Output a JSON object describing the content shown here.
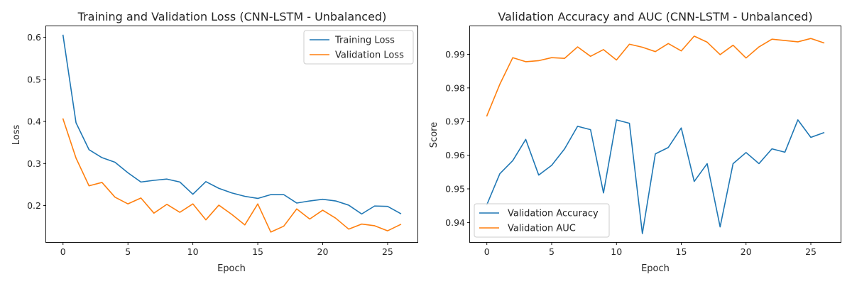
{
  "chart_data": [
    {
      "type": "line",
      "title": "Training and Validation Loss (CNN-LSTM - Unbalanced)",
      "xlabel": "Epoch",
      "ylabel": "Loss",
      "x": [
        0,
        1,
        2,
        3,
        4,
        5,
        6,
        7,
        8,
        9,
        10,
        11,
        12,
        13,
        14,
        15,
        16,
        17,
        18,
        19,
        20,
        21,
        22,
        23,
        24,
        25,
        26
      ],
      "xlim": [
        -1.3,
        27.3
      ],
      "ylim": [
        0.1131,
        0.6264
      ],
      "xticks": [
        0,
        5,
        10,
        15,
        20,
        25
      ],
      "yticks": [
        0.2,
        0.3,
        0.4,
        0.5,
        0.6
      ],
      "ytick_labels": [
        "0.2",
        "0.3",
        "0.4",
        "0.5",
        "0.6"
      ],
      "grid": false,
      "legend_position": "top-right",
      "series": [
        {
          "name": "Training Loss",
          "color": "#1f77b4",
          "values": [
            0.605,
            0.397,
            0.333,
            0.314,
            0.303,
            0.278,
            0.256,
            0.26,
            0.263,
            0.256,
            0.227,
            0.257,
            0.241,
            0.23,
            0.222,
            0.217,
            0.226,
            0.226,
            0.206,
            0.211,
            0.215,
            0.211,
            0.201,
            0.18,
            0.199,
            0.198,
            0.181
          ]
        },
        {
          "name": "Validation Loss",
          "color": "#ff7f0e",
          "values": [
            0.406,
            0.313,
            0.247,
            0.255,
            0.22,
            0.204,
            0.218,
            0.182,
            0.203,
            0.184,
            0.204,
            0.166,
            0.201,
            0.179,
            0.154,
            0.204,
            0.137,
            0.151,
            0.192,
            0.168,
            0.189,
            0.17,
            0.144,
            0.156,
            0.152,
            0.14,
            0.155
          ]
        }
      ]
    },
    {
      "type": "line",
      "title": "Validation Accuracy and AUC (CNN-LSTM - Unbalanced)",
      "xlabel": "Epoch",
      "ylabel": "Score",
      "x": [
        0,
        1,
        2,
        3,
        4,
        5,
        6,
        7,
        8,
        9,
        10,
        11,
        12,
        13,
        14,
        15,
        16,
        17,
        18,
        19,
        20,
        21,
        22,
        23,
        24,
        25,
        26
      ],
      "xlim": [
        -1.3,
        27.3
      ],
      "ylim": [
        0.93417,
        0.99833
      ],
      "xticks": [
        0,
        5,
        10,
        15,
        20,
        25
      ],
      "yticks": [
        0.94,
        0.95,
        0.96,
        0.97,
        0.98,
        0.99
      ],
      "ytick_labels": [
        "0.94",
        "0.95",
        "0.96",
        "0.97",
        "0.98",
        "0.99"
      ],
      "grid": false,
      "legend_position": "bottom-left",
      "series": [
        {
          "name": "Validation Accuracy",
          "color": "#1f77b4",
          "values": [
            0.9453,
            0.9545,
            0.9584,
            0.9647,
            0.9541,
            0.957,
            0.9619,
            0.9686,
            0.9676,
            0.9488,
            0.9705,
            0.9695,
            0.9367,
            0.9604,
            0.9623,
            0.9681,
            0.9522,
            0.9575,
            0.9387,
            0.9575,
            0.9608,
            0.9575,
            0.9619,
            0.9609,
            0.9705,
            0.9653,
            0.9667
          ]
        },
        {
          "name": "Validation AUC",
          "color": "#ff7f0e",
          "values": [
            0.9717,
            0.9811,
            0.989,
            0.9878,
            0.9881,
            0.989,
            0.9888,
            0.9922,
            0.9894,
            0.9914,
            0.9883,
            0.993,
            0.9921,
            0.9908,
            0.9932,
            0.991,
            0.9954,
            0.9936,
            0.9899,
            0.9927,
            0.9889,
            0.9922,
            0.9945,
            0.9941,
            0.9937,
            0.9947,
            0.9934
          ]
        }
      ]
    }
  ]
}
